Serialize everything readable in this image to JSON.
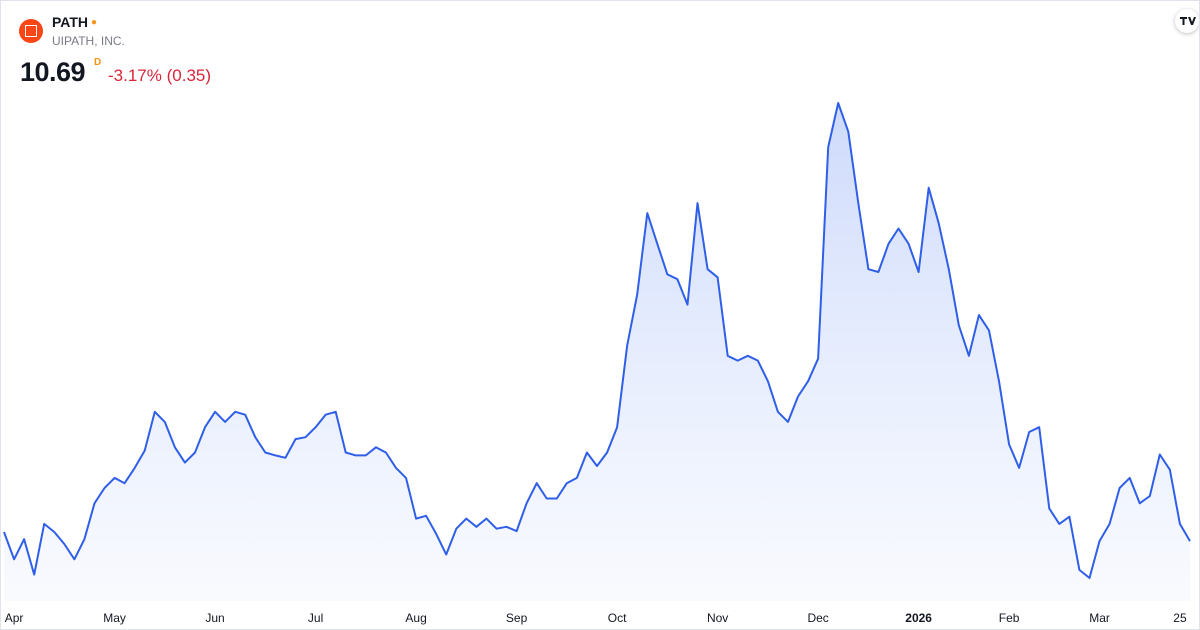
{
  "header": {
    "symbol": "PATH",
    "company": "UIPATH, INC.",
    "price": "10.69",
    "price_suffix": "D",
    "change_percent": "-3.17%",
    "change": "(0.35)"
  },
  "chart_data": {
    "type": "area",
    "color": "#2f5fe8",
    "categories": [
      null,
      "Apr",
      null,
      null,
      null,
      null,
      null,
      null,
      null,
      null,
      null,
      "May",
      null,
      null,
      null,
      null,
      null,
      null,
      null,
      null,
      null,
      "Jun",
      null,
      null,
      null,
      null,
      null,
      null,
      null,
      null,
      null,
      "Jul",
      null,
      null,
      null,
      null,
      null,
      null,
      null,
      null,
      null,
      "Aug",
      null,
      null,
      null,
      null,
      null,
      null,
      null,
      null,
      null,
      "Sep",
      null,
      null,
      null,
      null,
      null,
      null,
      null,
      null,
      null,
      "Oct",
      null,
      null,
      null,
      null,
      null,
      null,
      null,
      null,
      null,
      "Nov",
      null,
      null,
      null,
      null,
      null,
      null,
      null,
      null,
      null,
      "Dec",
      null,
      null,
      null,
      null,
      null,
      null,
      null,
      null,
      null,
      "2026",
      null,
      null,
      null,
      null,
      null,
      null,
      null,
      null,
      "Feb",
      null,
      null,
      null,
      null,
      null,
      null,
      null,
      null,
      "Mar",
      null,
      null,
      null,
      null,
      null,
      null,
      null,
      "25",
      null
    ],
    "values": [
      10.88,
      10.31,
      10.73,
      9.99,
      11.05,
      10.88,
      10.63,
      10.31,
      10.73,
      11.48,
      11.8,
      12.01,
      11.9,
      12.22,
      12.58,
      13.39,
      13.18,
      12.65,
      12.33,
      12.54,
      13.07,
      13.39,
      13.18,
      13.39,
      13.33,
      12.86,
      12.54,
      12.48,
      12.43,
      12.82,
      12.86,
      13.07,
      13.33,
      13.39,
      12.54,
      12.48,
      12.48,
      12.65,
      12.54,
      12.22,
      12.01,
      11.16,
      11.22,
      10.84,
      10.41,
      10.95,
      11.16,
      10.99,
      11.16,
      10.95,
      10.99,
      10.9,
      11.48,
      11.9,
      11.58,
      11.58,
      11.9,
      12.01,
      12.54,
      12.26,
      12.54,
      13.07,
      14.78,
      15.84,
      17.54,
      16.9,
      16.26,
      16.16,
      15.63,
      17.75,
      16.37,
      16.2,
      14.56,
      14.46,
      14.56,
      14.46,
      14.03,
      13.39,
      13.18,
      13.71,
      14.03,
      14.5,
      18.92,
      19.84,
      19.24,
      17.75,
      16.37,
      16.31,
      16.9,
      17.22,
      16.9,
      16.31,
      18.07,
      17.33,
      16.37,
      15.2,
      14.56,
      15.41,
      15.09,
      14.03,
      12.71,
      12.22,
      12.97,
      13.07,
      11.37,
      11.05,
      11.2,
      10.09,
      9.92,
      10.69,
      11.05,
      11.8,
      12.01,
      11.48,
      11.63,
      12.5,
      12.18,
      11.05,
      10.69
    ]
  }
}
